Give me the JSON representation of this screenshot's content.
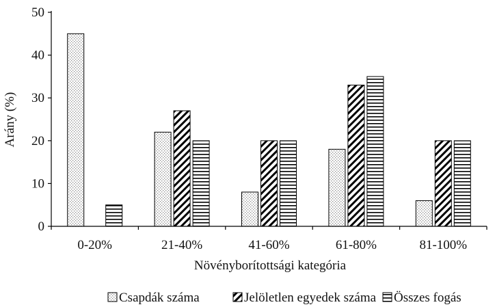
{
  "chart_data": {
    "type": "bar",
    "xlabel": "Növényborítottsági kategória",
    "ylabel": "Arány (%)",
    "ylim": [
      0,
      50
    ],
    "yticks": [
      0,
      10,
      20,
      30,
      40,
      50
    ],
    "grid": false,
    "legend_position": "bottom",
    "categories": [
      "0-20%",
      "21-40%",
      "41-60%",
      "61-80%",
      "81-100%"
    ],
    "series": [
      {
        "name": "Csapdák száma",
        "values": [
          45,
          22,
          8,
          18,
          6
        ],
        "pattern": "dots",
        "color": "#d9d9d9"
      },
      {
        "name": "Jelöletlen egyedek száma",
        "values": [
          0,
          27,
          20,
          33,
          20
        ],
        "pattern": "diagonal",
        "color": "#000000"
      },
      {
        "name": "Összes fogás",
        "values": [
          5,
          20,
          20,
          35,
          20
        ],
        "pattern": "horizontal",
        "color": "#000000"
      }
    ]
  }
}
